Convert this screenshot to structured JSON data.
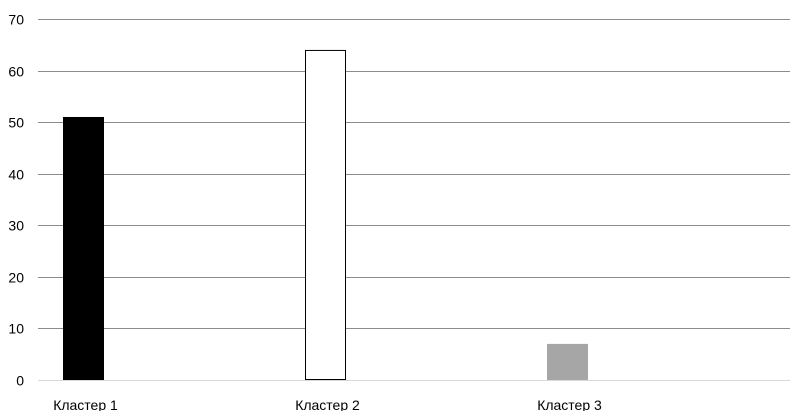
{
  "chart_data": {
    "type": "bar",
    "title": "",
    "xlabel": "",
    "ylabel": "",
    "categories": [
      "Кластер 1",
      "Кластер 2",
      "Кластер 3"
    ],
    "values": [
      51,
      64,
      7
    ],
    "bar_colors": [
      "#000000",
      "#ffffff",
      "#a6a6a6"
    ],
    "bar_outline": [
      "#000000",
      "#000000",
      "#a6a6a6"
    ],
    "ylim": [
      0,
      70
    ],
    "yticks": [
      0,
      10,
      20,
      30,
      40,
      50,
      60,
      70
    ],
    "grid": true,
    "legend": "none"
  }
}
